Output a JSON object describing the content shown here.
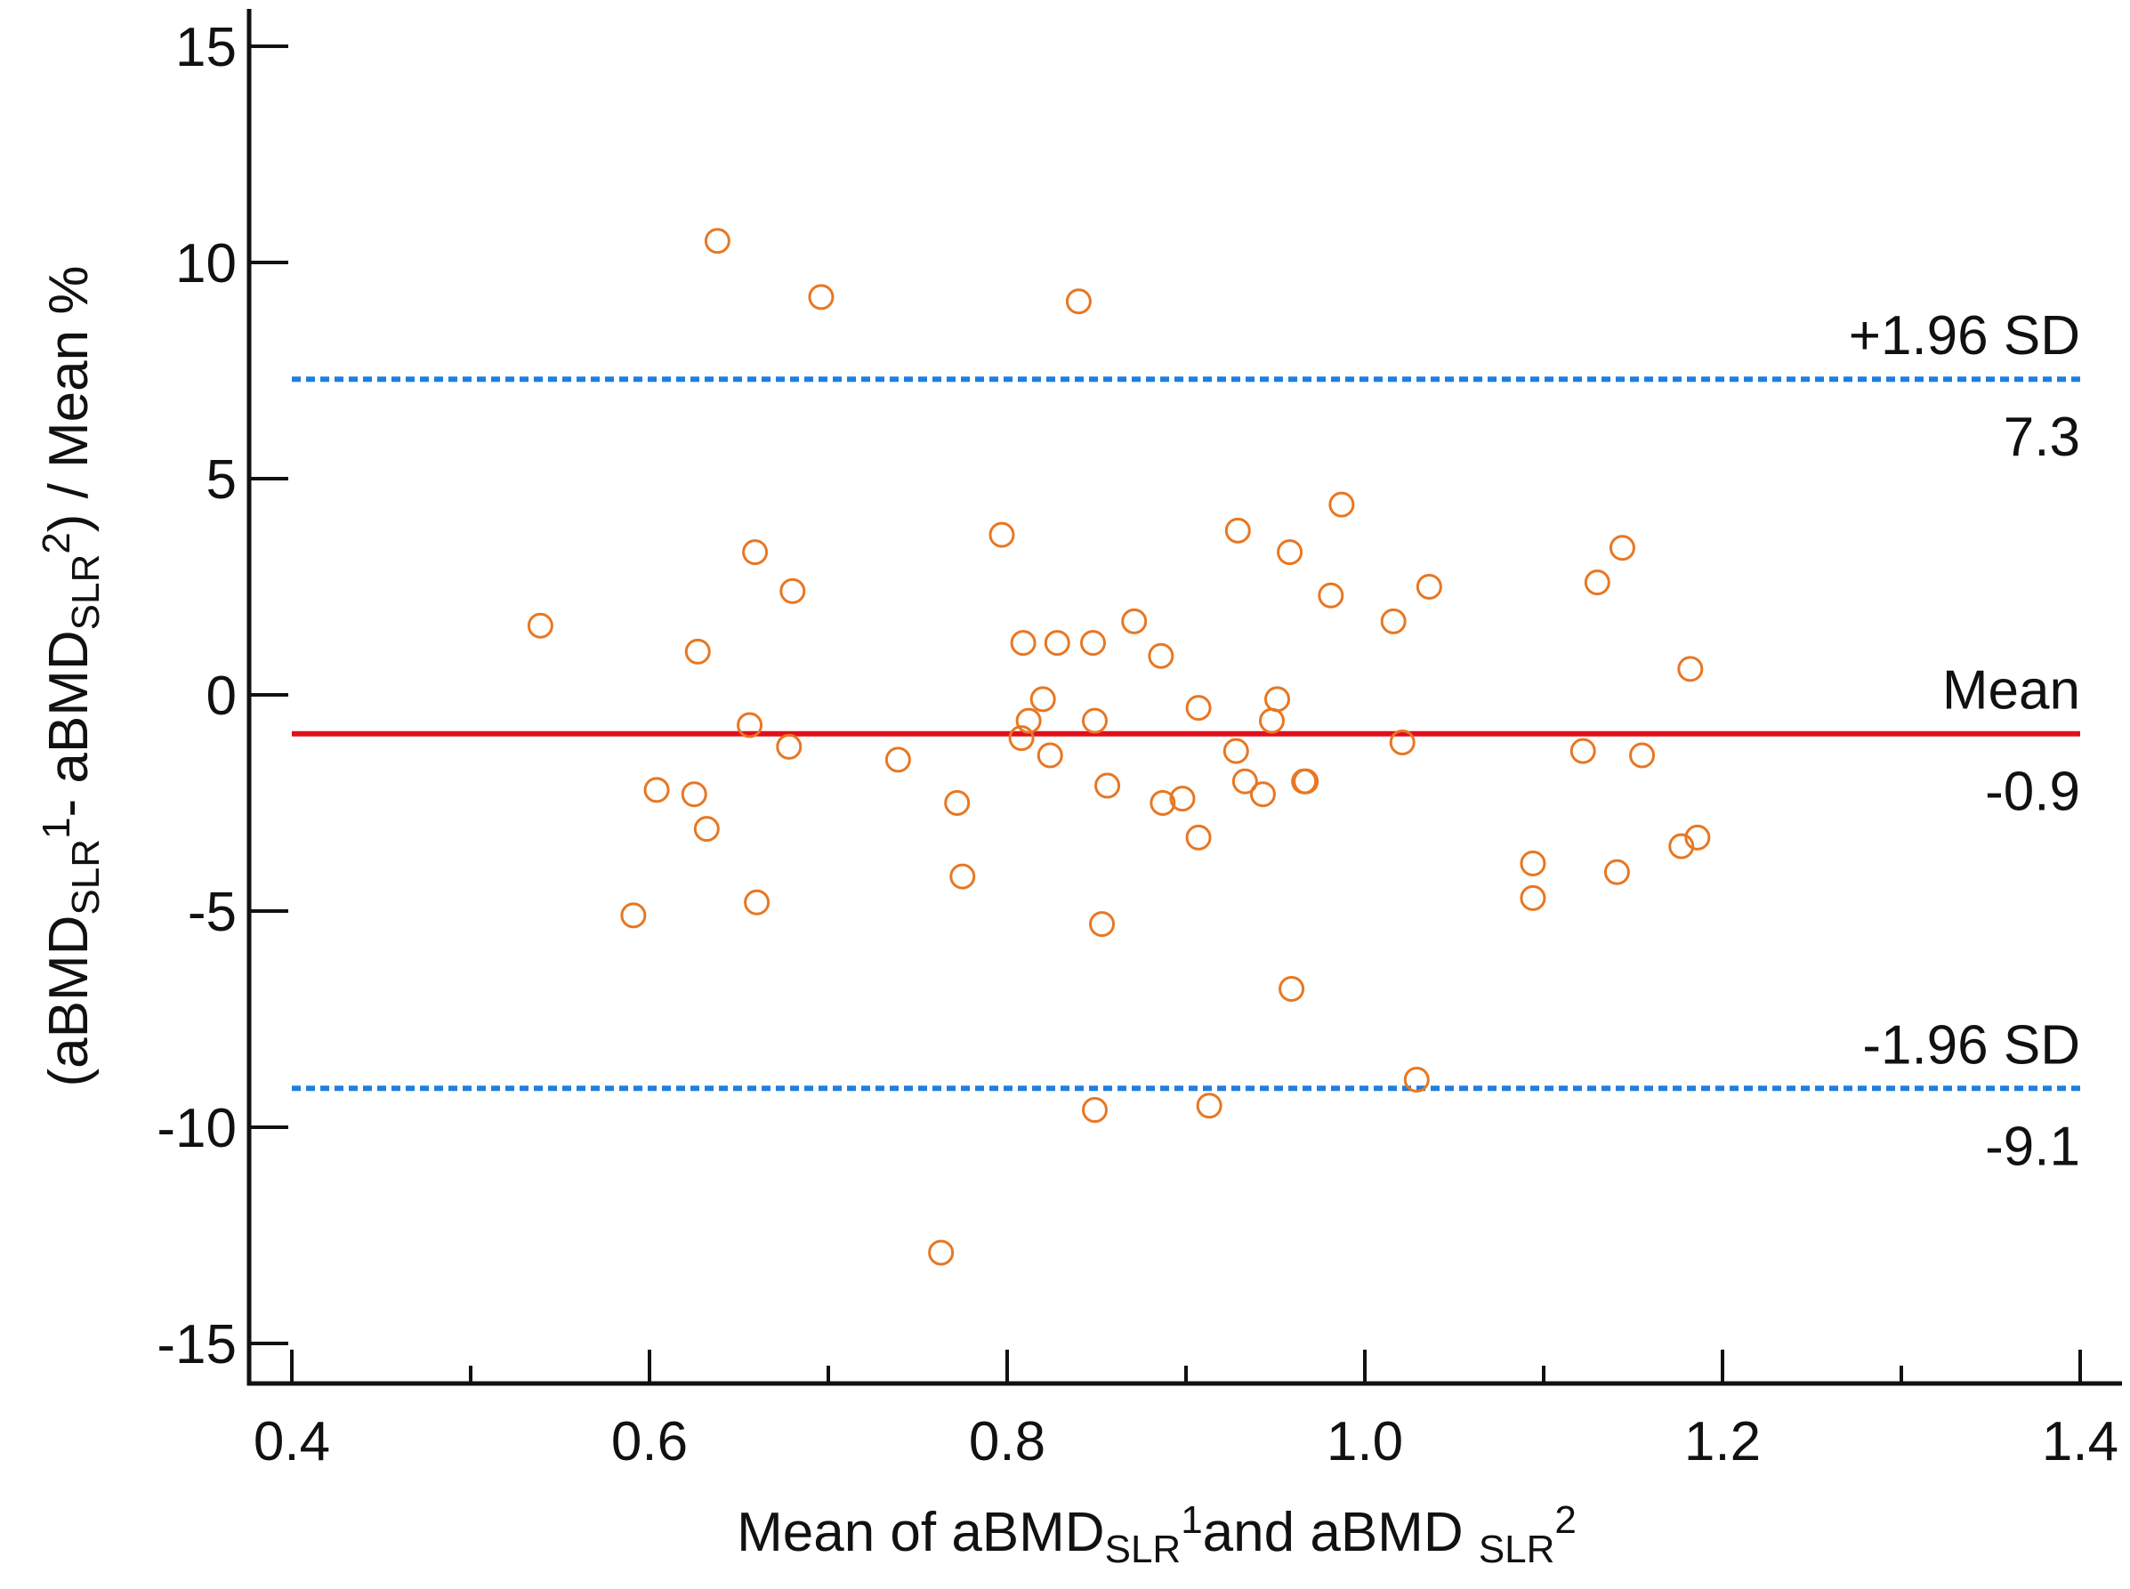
{
  "chart_data": {
    "type": "scatter",
    "title": "",
    "xlabel": {
      "parts": [
        {
          "t": "Mean of aBMD"
        },
        {
          "t": "SLR",
          "s": "sub"
        },
        {
          "t": "1",
          "s": "sup"
        },
        {
          "t": "and aBMD "
        },
        {
          "t": "SLR",
          "s": "sub"
        },
        {
          "t": "2",
          "s": "sup"
        }
      ]
    },
    "ylabel": {
      "parts": [
        {
          "t": "(aBMD"
        },
        {
          "t": "SLR",
          "s": "sub"
        },
        {
          "t": "1",
          "s": "sup"
        },
        {
          "t": "- aBMD"
        },
        {
          "t": "SLR",
          "s": "sub"
        },
        {
          "t": "2",
          "s": "sup"
        },
        {
          "t": ") / Mean %"
        }
      ]
    },
    "xlim": [
      0.38,
      1.42
    ],
    "ylim": [
      -16.5,
      16
    ],
    "x_ticks": [
      {
        "v": 0.4,
        "label": "0.4"
      },
      {
        "v": 0.6,
        "label": "0.6"
      },
      {
        "v": 0.8,
        "label": "0.8"
      },
      {
        "v": 1.0,
        "label": "1.0"
      },
      {
        "v": 1.2,
        "label": "1.2"
      },
      {
        "v": 1.4,
        "label": "1.4"
      }
    ],
    "x_minor_ticks": [
      0.5,
      0.7,
      0.9,
      1.1,
      1.3
    ],
    "y_ticks": [
      {
        "v": 15,
        "label": "15"
      },
      {
        "v": 10,
        "label": "10"
      },
      {
        "v": 5,
        "label": "5"
      },
      {
        "v": 0,
        "label": "0"
      },
      {
        "v": -5,
        "label": "-5"
      },
      {
        "v": -10,
        "label": "-10"
      },
      {
        "v": -15,
        "label": "-15"
      }
    ],
    "grid": false,
    "marker_color": "#E87722",
    "mean_line": {
      "value": -0.9,
      "label": "Mean",
      "value_label": "-0.9",
      "color": "#E0101A"
    },
    "upper_loa": {
      "value": 7.3,
      "label": "+1.96 SD",
      "value_label": "7.3",
      "color": "#1E7FE0"
    },
    "lower_loa": {
      "value": -9.1,
      "label": "-1.96 SD",
      "value_label": "-9.1",
      "color": "#1E7FE0"
    },
    "points": [
      {
        "x": 0.539,
        "y": 1.6
      },
      {
        "x": 0.591,
        "y": -5.1
      },
      {
        "x": 0.604,
        "y": -2.2
      },
      {
        "x": 0.625,
        "y": -2.3
      },
      {
        "x": 0.627,
        "y": 1.0
      },
      {
        "x": 0.632,
        "y": -3.1
      },
      {
        "x": 0.638,
        "y": 10.5
      },
      {
        "x": 0.656,
        "y": -0.7
      },
      {
        "x": 0.659,
        "y": 3.3
      },
      {
        "x": 0.66,
        "y": -4.8
      },
      {
        "x": 0.678,
        "y": -1.2
      },
      {
        "x": 0.68,
        "y": 2.4
      },
      {
        "x": 0.696,
        "y": 9.2
      },
      {
        "x": 0.739,
        "y": -1.5
      },
      {
        "x": 0.763,
        "y": -12.9
      },
      {
        "x": 0.772,
        "y": -2.5
      },
      {
        "x": 0.775,
        "y": -4.2
      },
      {
        "x": 0.797,
        "y": 3.7
      },
      {
        "x": 0.808,
        "y": -1.0
      },
      {
        "x": 0.809,
        "y": 1.2
      },
      {
        "x": 0.812,
        "y": -0.6
      },
      {
        "x": 0.82,
        "y": -0.1
      },
      {
        "x": 0.824,
        "y": -1.4
      },
      {
        "x": 0.828,
        "y": 1.2
      },
      {
        "x": 0.84,
        "y": 9.1
      },
      {
        "x": 0.848,
        "y": 1.2
      },
      {
        "x": 0.849,
        "y": -0.6
      },
      {
        "x": 0.849,
        "y": -9.6
      },
      {
        "x": 0.853,
        "y": -5.3
      },
      {
        "x": 0.856,
        "y": -2.1
      },
      {
        "x": 0.871,
        "y": 1.7
      },
      {
        "x": 0.886,
        "y": 0.9
      },
      {
        "x": 0.887,
        "y": -2.5
      },
      {
        "x": 0.898,
        "y": -2.4
      },
      {
        "x": 0.907,
        "y": -0.3
      },
      {
        "x": 0.907,
        "y": -3.3
      },
      {
        "x": 0.913,
        "y": -9.5
      },
      {
        "x": 0.928,
        "y": -1.3
      },
      {
        "x": 0.929,
        "y": 3.8
      },
      {
        "x": 0.933,
        "y": -2.0
      },
      {
        "x": 0.943,
        "y": -2.3
      },
      {
        "x": 0.948,
        "y": -0.6
      },
      {
        "x": 0.951,
        "y": -0.1
      },
      {
        "x": 0.958,
        "y": 3.3
      },
      {
        "x": 0.959,
        "y": -6.8
      },
      {
        "x": 0.966,
        "y": -2.0
      },
      {
        "x": 0.967,
        "y": -2.0
      },
      {
        "x": 0.981,
        "y": 2.3
      },
      {
        "x": 0.987,
        "y": 4.4
      },
      {
        "x": 1.016,
        "y": 1.7
      },
      {
        "x": 1.021,
        "y": -1.1
      },
      {
        "x": 1.029,
        "y": -8.9
      },
      {
        "x": 1.036,
        "y": 2.5
      },
      {
        "x": 1.094,
        "y": -3.9
      },
      {
        "x": 1.094,
        "y": -4.7
      },
      {
        "x": 1.122,
        "y": -1.3
      },
      {
        "x": 1.13,
        "y": 2.6
      },
      {
        "x": 1.141,
        "y": -4.1
      },
      {
        "x": 1.144,
        "y": 3.4
      },
      {
        "x": 1.155,
        "y": -1.4
      },
      {
        "x": 1.177,
        "y": -3.5
      },
      {
        "x": 1.182,
        "y": 0.6
      },
      {
        "x": 1.186,
        "y": -3.3
      }
    ]
  }
}
